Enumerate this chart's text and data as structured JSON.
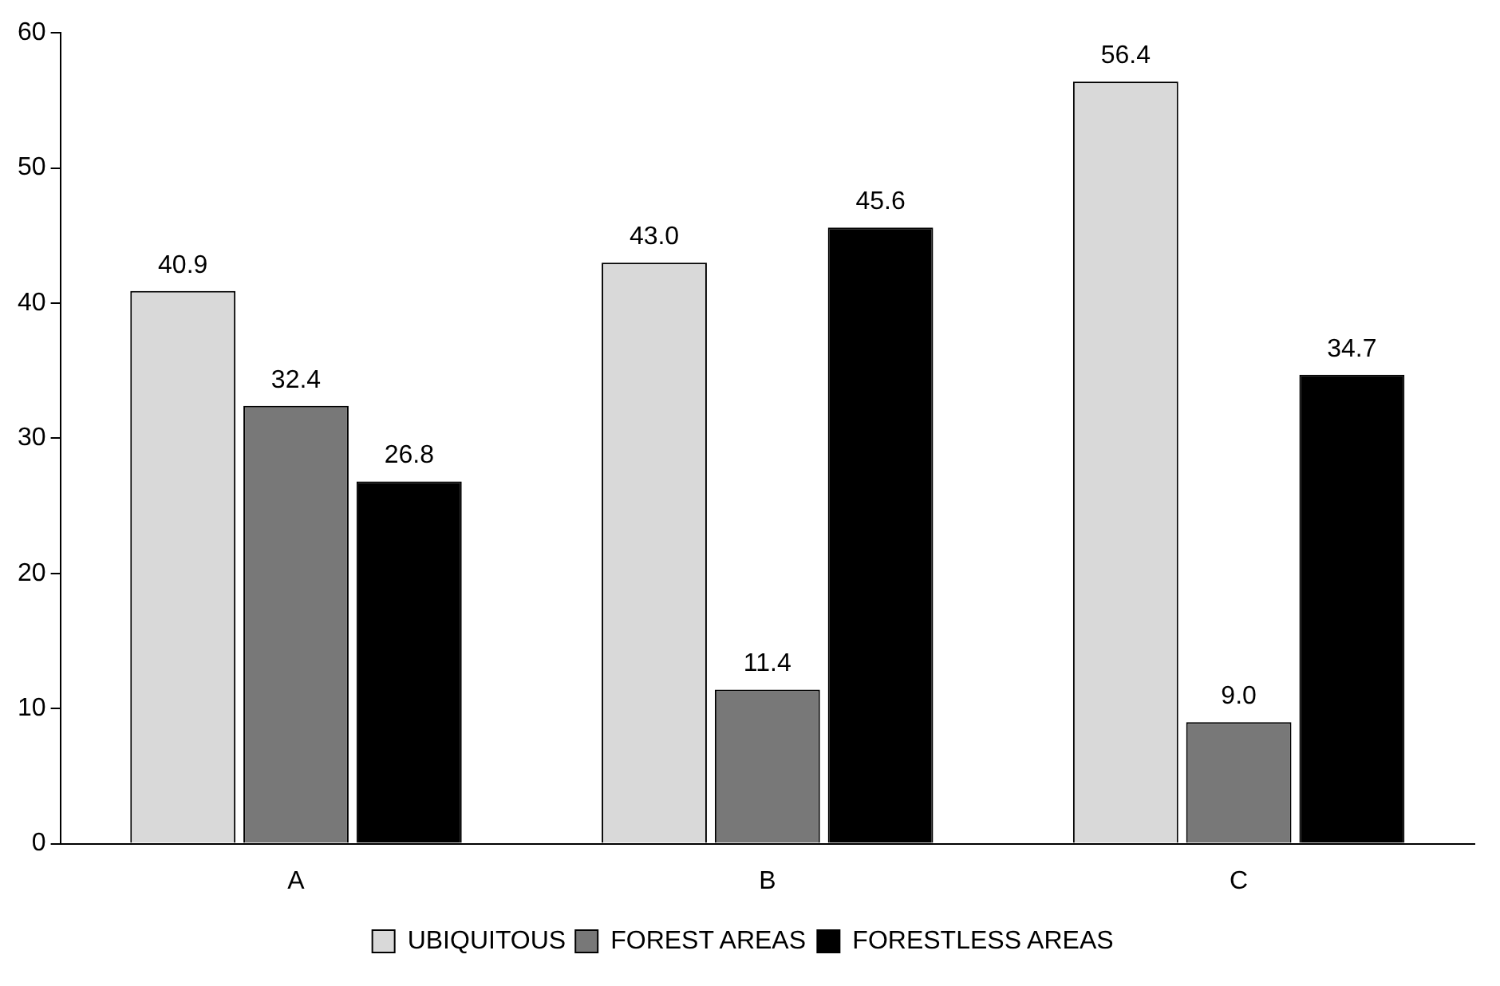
{
  "chart_data": {
    "type": "bar",
    "categories": [
      "A",
      "B",
      "C"
    ],
    "series": [
      {
        "name": "UBIQUITOUS",
        "color": "#d9d9d9",
        "values": [
          40.9,
          43.0,
          56.4
        ],
        "value_labels": [
          "40.9",
          "43.0",
          "56.4"
        ]
      },
      {
        "name": "FOREST AREAS",
        "color": "#787878",
        "values": [
          32.4,
          11.4,
          9.0
        ],
        "value_labels": [
          "32.4",
          "11.4",
          "9.0"
        ]
      },
      {
        "name": "FORESTLESS AREAS",
        "color": "#000000",
        "values": [
          26.8,
          45.6,
          34.7
        ],
        "value_labels": [
          "26.8",
          "45.6",
          "34.7"
        ]
      }
    ],
    "ylim": [
      0,
      60
    ],
    "yticks": [
      0,
      10,
      20,
      30,
      40,
      50,
      60
    ],
    "grid": false,
    "legend": "bottom"
  }
}
